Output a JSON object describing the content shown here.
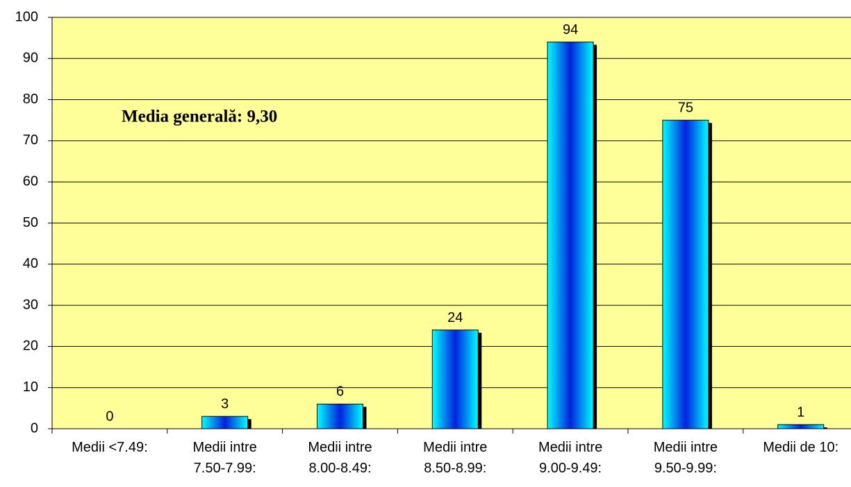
{
  "chart_data": {
    "type": "bar",
    "annotation": "Media generală: 9,30",
    "categories": [
      "Medii <7.49:",
      "Medii intre 7.50-7.99:",
      "Medii intre 8.00-8.49:",
      "Medii intre 8.50-8.99:",
      "Medii intre 9.00-9.49:",
      "Medii intre 9.50-9.99:",
      "Medii de 10:"
    ],
    "values": [
      0,
      3,
      6,
      24,
      94,
      75,
      1
    ],
    "color": "#0033cc",
    "ylim": [
      0,
      100
    ],
    "yticks": [
      0,
      10,
      20,
      30,
      40,
      50,
      60,
      70,
      80,
      90,
      100
    ],
    "grid": true
  }
}
